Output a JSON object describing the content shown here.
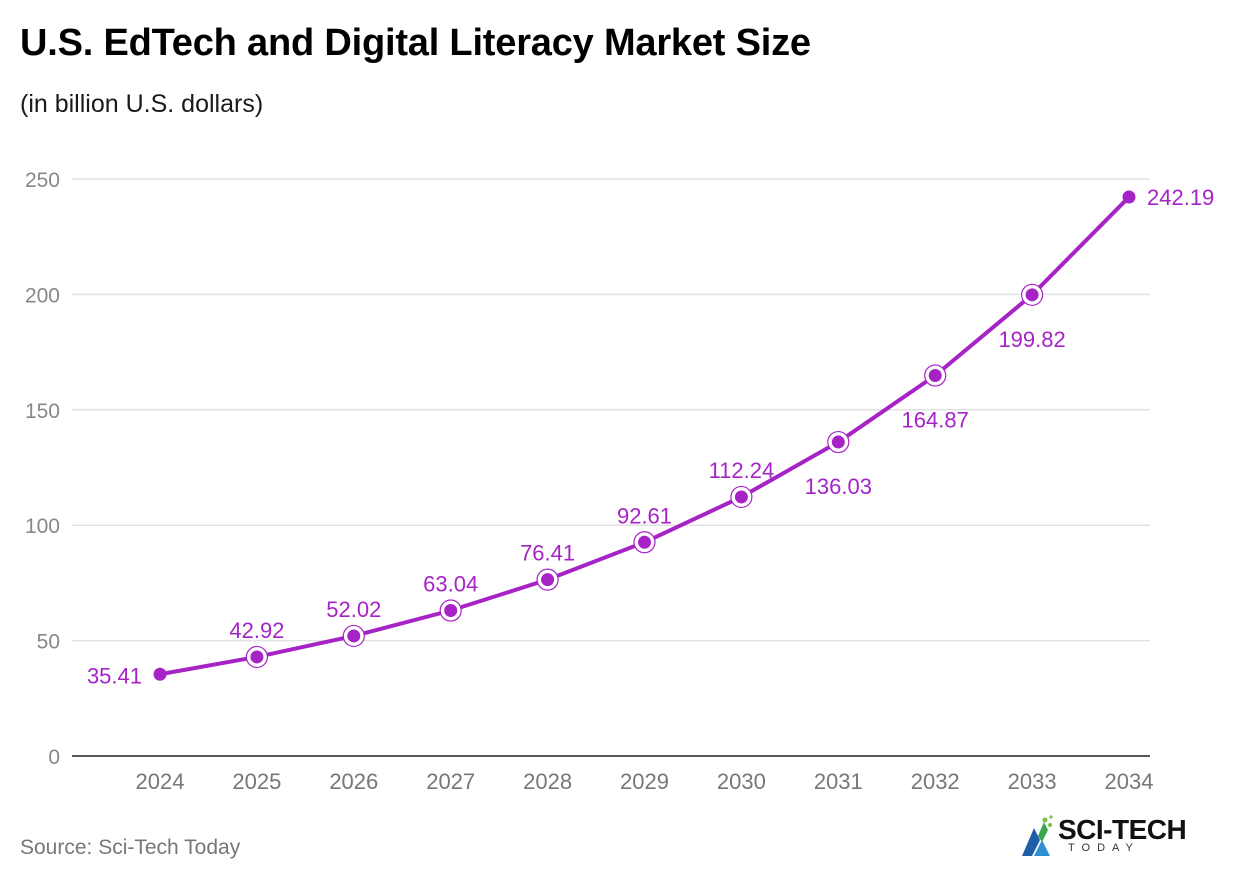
{
  "header": {
    "title": "U.S. EdTech and Digital Literacy Market Size",
    "subtitle": "(in billion U.S. dollars)"
  },
  "footer": {
    "source": "Source: Sci-Tech Today",
    "logo_main": "SCI-TECH",
    "logo_sub": "TODAY"
  },
  "colors": {
    "series": "#a623c6",
    "label": "#a623c6",
    "grid": "#e2e2e2",
    "axis": "#222222",
    "tick": "#888888",
    "xtick": "#777777"
  },
  "chart_data": {
    "type": "line",
    "title": "U.S. EdTech and Digital Literacy Market Size",
    "subtitle": "(in billion U.S. dollars)",
    "xlabel": "",
    "ylabel": "",
    "categories": [
      "2024",
      "2025",
      "2026",
      "2027",
      "2028",
      "2029",
      "2030",
      "2031",
      "2032",
      "2033",
      "2034"
    ],
    "series": [
      {
        "name": "Market Size",
        "values": [
          35.41,
          42.92,
          52.02,
          63.04,
          76.41,
          92.61,
          112.24,
          136.03,
          164.87,
          199.82,
          242.19
        ],
        "labels": [
          "35.41",
          "42.92",
          "52.02",
          "63.04",
          "76.41",
          "92.61",
          "112.24",
          "136.03",
          "164.87",
          "199.82",
          "242.19"
        ]
      }
    ],
    "ylim": [
      0,
      250
    ],
    "yticks": [
      0,
      50,
      100,
      150,
      200,
      250
    ],
    "grid": true,
    "legend": "none"
  }
}
